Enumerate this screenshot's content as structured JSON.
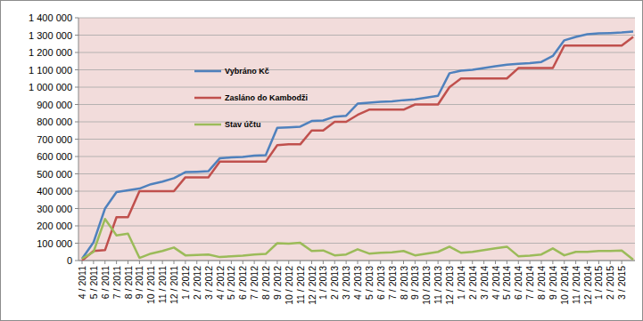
{
  "chart_data": {
    "type": "line",
    "categories": [
      "4 / 2011",
      "5 / 2011",
      "6 / 2011",
      "7 / 2011",
      "8 / 2011",
      "9 / 2011",
      "10 / 2011",
      "11 / 2011",
      "12 / 2011",
      "1 / 2012",
      "2 / 2012",
      "3 / 2012",
      "4 / 2012",
      "5 / 2012",
      "6 / 2012",
      "7 / 2012",
      "8 / 2012",
      "9 / 2012",
      "10 / 2012",
      "11 / 2012",
      "12 / 2012",
      "1 / 2013",
      "2 / 2013",
      "3 / 2013",
      "4 / 2013",
      "5 / 2013",
      "6 / 2013",
      "7 / 2013",
      "8 / 2013",
      "9 / 2013",
      "10 / 2013",
      "11 / 2013",
      "12 / 2013",
      "1 / 2014",
      "2 / 2014",
      "3 / 2014",
      "4 / 2014",
      "5 / 2014",
      "6 / 2014",
      "7 / 2014",
      "8 / 2014",
      "9 / 2014",
      "10 / 2014",
      "11 / 2014",
      "12 / 2014",
      "1 / 2015",
      "2 / 2015",
      "3 / 2015",
      null
    ],
    "series": [
      {
        "name": "Vybráno Kč",
        "color": "#4f81bd",
        "values": [
          10000,
          105000,
          300000,
          395000,
          405000,
          415000,
          440000,
          455000,
          475000,
          510000,
          512000,
          515000,
          590000,
          595000,
          598000,
          605000,
          608000,
          765000,
          768000,
          772000,
          805000,
          808000,
          830000,
          835000,
          905000,
          910000,
          915000,
          918000,
          925000,
          930000,
          940000,
          950000,
          1080000,
          1095000,
          1100000,
          1110000,
          1120000,
          1130000,
          1135000,
          1138000,
          1145000,
          1180000,
          1270000,
          1290000,
          1305000,
          1310000,
          1312000,
          1315000,
          1320000
        ]
      },
      {
        "name": "Zasláno do Kambodži",
        "color": "#c0504d",
        "values": [
          0,
          55000,
          60000,
          250000,
          250000,
          400000,
          400000,
          400000,
          400000,
          480000,
          480000,
          480000,
          570000,
          570000,
          570000,
          570000,
          570000,
          665000,
          670000,
          670000,
          750000,
          750000,
          800000,
          800000,
          840000,
          870000,
          870000,
          870000,
          870000,
          900000,
          900000,
          900000,
          1000000,
          1050000,
          1050000,
          1050000,
          1050000,
          1050000,
          1110000,
          1110000,
          1110000,
          1110000,
          1240000,
          1240000,
          1240000,
          1240000,
          1240000,
          1240000,
          1290000
        ]
      },
      {
        "name": "Stav účtu",
        "color": "#9bbb59",
        "values": [
          10000,
          50000,
          240000,
          145000,
          155000,
          15000,
          40000,
          55000,
          75000,
          30000,
          32000,
          35000,
          20000,
          25000,
          28000,
          35000,
          38000,
          100000,
          98000,
          102000,
          55000,
          58000,
          30000,
          35000,
          65000,
          40000,
          45000,
          48000,
          55000,
          30000,
          40000,
          50000,
          80000,
          45000,
          50000,
          60000,
          70000,
          80000,
          25000,
          28000,
          35000,
          70000,
          30000,
          50000,
          50000,
          55000,
          55000,
          58000,
          5000
        ]
      }
    ],
    "ylim": [
      0,
      1400000
    ],
    "yticks": [
      0,
      {
        "value": 100000,
        "label": "100 000"
      },
      {
        "value": 200000,
        "label": "200 000"
      },
      {
        "value": 300000,
        "label": "300 000"
      },
      {
        "value": 400000,
        "label": "400 000"
      },
      {
        "value": 500000,
        "label": "500 000"
      },
      {
        "value": 600000,
        "label": "600 000"
      },
      {
        "value": 700000,
        "label": "700 000"
      },
      {
        "value": 800000,
        "label": "800 000"
      },
      {
        "value": 900000,
        "label": "900 000"
      },
      {
        "value": 1000000,
        "label": "1 000 000"
      },
      {
        "value": 1100000,
        "label": "1 100 000"
      },
      {
        "value": 1200000,
        "label": "1 200 000"
      },
      {
        "value": 1300000,
        "label": "1 300 000"
      },
      {
        "value": 1400000,
        "label": "1 400 000"
      }
    ],
    "grid": true,
    "legend": "upper left"
  }
}
